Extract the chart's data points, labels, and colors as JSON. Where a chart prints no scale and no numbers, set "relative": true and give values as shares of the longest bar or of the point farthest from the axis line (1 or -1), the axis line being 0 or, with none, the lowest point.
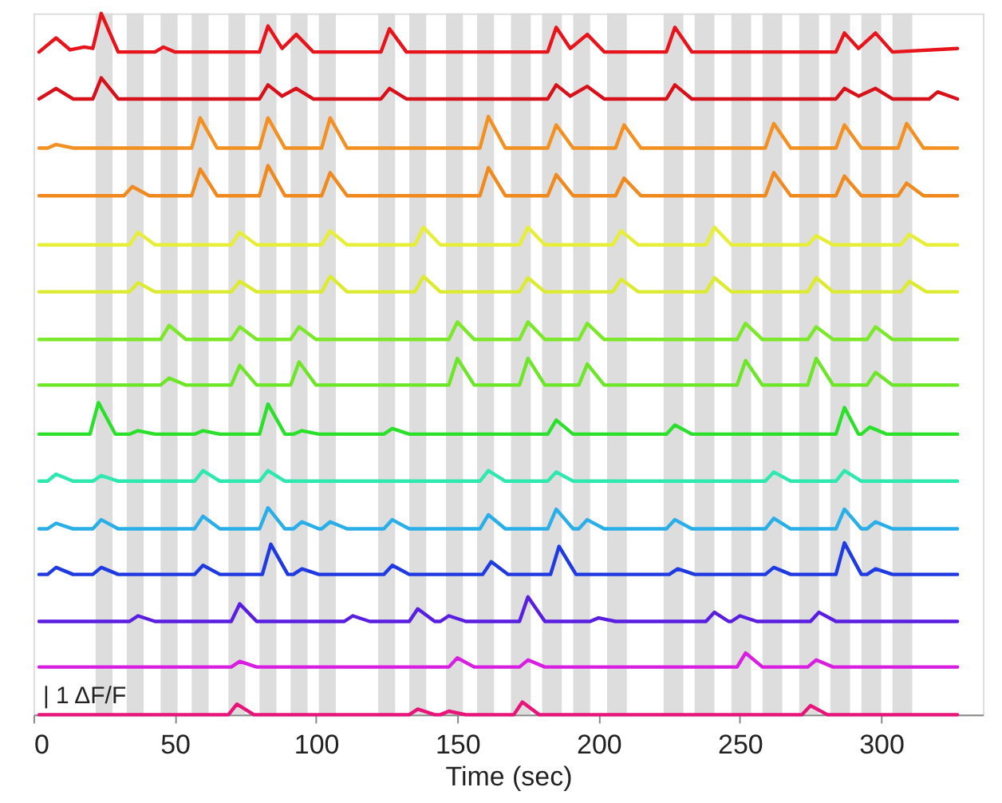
{
  "chart_data": {
    "type": "line",
    "relative": true,
    "xlabel": "Time (sec)",
    "xlim": [
      0,
      336
    ],
    "xticks": [
      0,
      50,
      100,
      150,
      200,
      250,
      300
    ],
    "grid": false,
    "legend": false,
    "annotations": [
      "| 1 ΔF/F"
    ],
    "bands": [
      {
        "axis": "x",
        "from": 22,
        "to": 28,
        "color": "#d9d9d9"
      },
      {
        "axis": "x",
        "from": 33,
        "to": 39,
        "color": "#d9d9d9"
      },
      {
        "axis": "x",
        "from": 45,
        "to": 51,
        "color": "#d9d9d9"
      },
      {
        "axis": "x",
        "from": 56,
        "to": 62,
        "color": "#d9d9d9"
      },
      {
        "axis": "x",
        "from": 69,
        "to": 75,
        "color": "#d9d9d9"
      },
      {
        "axis": "x",
        "from": 80,
        "to": 86,
        "color": "#d9d9d9"
      },
      {
        "axis": "x",
        "from": 91,
        "to": 97,
        "color": "#d9d9d9"
      },
      {
        "axis": "x",
        "from": 101,
        "to": 107,
        "color": "#d9d9d9"
      },
      {
        "axis": "x",
        "from": 122,
        "to": 128,
        "color": "#d9d9d9"
      },
      {
        "axis": "x",
        "from": 133,
        "to": 139,
        "color": "#d9d9d9"
      },
      {
        "axis": "x",
        "from": 146,
        "to": 152,
        "color": "#d9d9d9"
      },
      {
        "axis": "x",
        "from": 157,
        "to": 163,
        "color": "#d9d9d9"
      },
      {
        "axis": "x",
        "from": 169,
        "to": 176,
        "color": "#d9d9d9"
      },
      {
        "axis": "x",
        "from": 180,
        "to": 187,
        "color": "#d9d9d9"
      },
      {
        "axis": "x",
        "from": 191,
        "to": 197,
        "color": "#d9d9d9"
      },
      {
        "axis": "x",
        "from": 203,
        "to": 210,
        "color": "#d9d9d9"
      },
      {
        "axis": "x",
        "from": 223,
        "to": 230,
        "color": "#d9d9d9"
      },
      {
        "axis": "x",
        "from": 234,
        "to": 241,
        "color": "#d9d9d9"
      },
      {
        "axis": "x",
        "from": 247,
        "to": 254,
        "color": "#d9d9d9"
      },
      {
        "axis": "x",
        "from": 258,
        "to": 265,
        "color": "#d9d9d9"
      },
      {
        "axis": "x",
        "from": 271,
        "to": 278,
        "color": "#d9d9d9"
      },
      {
        "axis": "x",
        "from": 282,
        "to": 289,
        "color": "#d9d9d9"
      },
      {
        "axis": "x",
        "from": 293,
        "to": 300,
        "color": "#d9d9d9"
      },
      {
        "axis": "x",
        "from": 304,
        "to": 311,
        "color": "#d9d9d9"
      }
    ],
    "series": [
      {
        "color": "#e8141c",
        "x": [
          2,
          8,
          13,
          18,
          21,
          24,
          30,
          43,
          46,
          50,
          80,
          83,
          88,
          93,
          99,
          123,
          126,
          132,
          182,
          185,
          190,
          196,
          202,
          224,
          227,
          233,
          284,
          287,
          292,
          298,
          304,
          327
        ],
        "values": [
          0.945,
          0.965,
          0.948,
          0.952,
          0.95,
          1,
          0.945,
          0.945,
          0.952,
          0.945,
          0.945,
          0.982,
          0.95,
          0.97,
          0.945,
          0.945,
          0.978,
          0.945,
          0.945,
          0.98,
          0.95,
          0.97,
          0.945,
          0.945,
          0.98,
          0.945,
          0.945,
          0.972,
          0.95,
          0.972,
          0.945,
          0.95
        ]
      },
      {
        "color": "#d8101a",
        "x": [
          2,
          8,
          14,
          21,
          24,
          30,
          80,
          83,
          88,
          93,
          99,
          123,
          126,
          132,
          182,
          185,
          190,
          196,
          202,
          224,
          227,
          233,
          284,
          287,
          292,
          298,
          304,
          317,
          320,
          327
        ],
        "values": [
          0.878,
          0.893,
          0.878,
          0.878,
          0.908,
          0.878,
          0.878,
          0.898,
          0.882,
          0.893,
          0.878,
          0.878,
          0.893,
          0.878,
          0.878,
          0.898,
          0.882,
          0.896,
          0.878,
          0.878,
          0.898,
          0.878,
          0.878,
          0.893,
          0.882,
          0.893,
          0.878,
          0.878,
          0.888,
          0.878
        ]
      },
      {
        "color": "#f39022",
        "x": [
          2,
          5,
          8,
          14,
          56,
          59,
          65,
          80,
          83,
          89,
          102,
          105,
          111,
          158,
          161,
          167,
          182,
          185,
          191,
          206,
          209,
          215,
          259,
          262,
          268,
          284,
          287,
          293,
          306,
          309,
          315,
          327
        ],
        "values": [
          0.808,
          0.808,
          0.813,
          0.808,
          0.808,
          0.851,
          0.808,
          0.808,
          0.851,
          0.808,
          0.808,
          0.851,
          0.808,
          0.808,
          0.853,
          0.808,
          0.808,
          0.841,
          0.808,
          0.808,
          0.841,
          0.808,
          0.808,
          0.843,
          0.808,
          0.808,
          0.841,
          0.808,
          0.808,
          0.843,
          0.808,
          0.808
        ]
      },
      {
        "color": "#f08a1e",
        "x": [
          2,
          32,
          35,
          41,
          56,
          59,
          65,
          80,
          83,
          89,
          102,
          105,
          111,
          158,
          161,
          167,
          182,
          185,
          191,
          206,
          209,
          215,
          259,
          262,
          268,
          284,
          287,
          293,
          306,
          309,
          315,
          327
        ],
        "values": [
          0.74,
          0.74,
          0.753,
          0.74,
          0.74,
          0.778,
          0.74,
          0.74,
          0.783,
          0.74,
          0.74,
          0.773,
          0.74,
          0.74,
          0.78,
          0.74,
          0.74,
          0.77,
          0.74,
          0.74,
          0.765,
          0.74,
          0.74,
          0.773,
          0.74,
          0.74,
          0.768,
          0.74,
          0.74,
          0.758,
          0.74,
          0.74
        ]
      },
      {
        "color": "#e6ee38",
        "x": [
          2,
          34,
          37,
          43,
          70,
          73,
          79,
          102,
          105,
          111,
          135,
          138,
          144,
          172,
          175,
          181,
          205,
          208,
          214,
          238,
          241,
          247,
          274,
          277,
          283,
          307,
          310,
          316,
          327
        ],
        "values": [
          0.67,
          0.67,
          0.688,
          0.67,
          0.67,
          0.688,
          0.67,
          0.67,
          0.69,
          0.67,
          0.67,
          0.695,
          0.67,
          0.67,
          0.695,
          0.67,
          0.67,
          0.69,
          0.67,
          0.67,
          0.695,
          0.67,
          0.67,
          0.683,
          0.67,
          0.67,
          0.685,
          0.67,
          0.67
        ]
      },
      {
        "color": "#dcea30",
        "x": [
          2,
          34,
          37,
          43,
          70,
          73,
          79,
          102,
          105,
          111,
          135,
          138,
          144,
          172,
          175,
          181,
          205,
          208,
          214,
          238,
          241,
          247,
          274,
          277,
          283,
          307,
          310,
          316,
          327
        ],
        "values": [
          0.603,
          0.603,
          0.616,
          0.603,
          0.603,
          0.618,
          0.603,
          0.603,
          0.625,
          0.603,
          0.603,
          0.625,
          0.603,
          0.603,
          0.623,
          0.603,
          0.603,
          0.621,
          0.603,
          0.603,
          0.623,
          0.603,
          0.603,
          0.623,
          0.603,
          0.603,
          0.618,
          0.603,
          0.603
        ]
      },
      {
        "color": "#7be82a",
        "x": [
          2,
          45,
          48,
          54,
          70,
          73,
          79,
          91,
          94,
          100,
          147,
          150,
          156,
          172,
          175,
          181,
          193,
          196,
          202,
          249,
          252,
          258,
          274,
          277,
          283,
          295,
          298,
          304,
          327
        ],
        "values": [
          0.535,
          0.535,
          0.555,
          0.535,
          0.535,
          0.553,
          0.535,
          0.535,
          0.553,
          0.535,
          0.535,
          0.56,
          0.535,
          0.535,
          0.56,
          0.535,
          0.535,
          0.558,
          0.535,
          0.535,
          0.558,
          0.535,
          0.535,
          0.553,
          0.535,
          0.535,
          0.553,
          0.535,
          0.535
        ]
      },
      {
        "color": "#6ee628",
        "x": [
          2,
          45,
          48,
          54,
          70,
          73,
          79,
          91,
          94,
          100,
          147,
          150,
          156,
          172,
          175,
          181,
          193,
          196,
          202,
          249,
          252,
          258,
          274,
          277,
          283,
          295,
          298,
          304,
          327
        ],
        "values": [
          0.47,
          0.47,
          0.48,
          0.47,
          0.47,
          0.498,
          0.47,
          0.47,
          0.503,
          0.47,
          0.47,
          0.508,
          0.47,
          0.47,
          0.508,
          0.47,
          0.47,
          0.5,
          0.47,
          0.47,
          0.505,
          0.47,
          0.47,
          0.508,
          0.47,
          0.47,
          0.488,
          0.47,
          0.47
        ]
      },
      {
        "color": "#2be02a",
        "x": [
          2,
          20,
          23,
          29,
          34,
          37,
          43,
          57,
          60,
          66,
          80,
          83,
          89,
          92,
          95,
          101,
          124,
          127,
          133,
          182,
          185,
          191,
          224,
          227,
          233,
          284,
          287,
          292,
          293,
          296,
          302,
          327
        ],
        "values": [
          0.4,
          0.4,
          0.445,
          0.4,
          0.4,
          0.405,
          0.4,
          0.4,
          0.405,
          0.4,
          0.4,
          0.443,
          0.4,
          0.4,
          0.405,
          0.4,
          0.4,
          0.408,
          0.4,
          0.4,
          0.42,
          0.4,
          0.4,
          0.413,
          0.4,
          0.4,
          0.438,
          0.4,
          0.4,
          0.41,
          0.4,
          0.4
        ]
      },
      {
        "color": "#2ee8b0",
        "x": [
          2,
          5,
          8,
          14,
          21,
          24,
          30,
          57,
          60,
          66,
          80,
          83,
          89,
          158,
          161,
          167,
          182,
          185,
          191,
          259,
          262,
          268,
          284,
          287,
          293,
          327
        ],
        "values": [
          0.333,
          0.333,
          0.343,
          0.333,
          0.333,
          0.341,
          0.333,
          0.333,
          0.348,
          0.333,
          0.333,
          0.348,
          0.333,
          0.333,
          0.348,
          0.333,
          0.333,
          0.346,
          0.333,
          0.333,
          0.346,
          0.333,
          0.333,
          0.348,
          0.333,
          0.333
        ]
      },
      {
        "color": "#2aaee8",
        "x": [
          2,
          5,
          8,
          14,
          21,
          24,
          30,
          57,
          60,
          66,
          80,
          83,
          89,
          92,
          95,
          101,
          102,
          105,
          111,
          124,
          127,
          133,
          158,
          161,
          167,
          182,
          185,
          191,
          193,
          196,
          202,
          224,
          227,
          233,
          259,
          262,
          268,
          284,
          287,
          293,
          295,
          298,
          304,
          327
        ],
        "values": [
          0.265,
          0.265,
          0.273,
          0.265,
          0.265,
          0.278,
          0.265,
          0.265,
          0.283,
          0.265,
          0.265,
          0.295,
          0.265,
          0.265,
          0.275,
          0.265,
          0.265,
          0.275,
          0.265,
          0.265,
          0.278,
          0.265,
          0.265,
          0.285,
          0.265,
          0.265,
          0.293,
          0.265,
          0.265,
          0.278,
          0.265,
          0.265,
          0.278,
          0.265,
          0.265,
          0.28,
          0.265,
          0.265,
          0.293,
          0.265,
          0.265,
          0.275,
          0.265,
          0.265
        ]
      },
      {
        "color": "#1e3ae0",
        "x": [
          2,
          5,
          8,
          14,
          21,
          24,
          30,
          57,
          60,
          66,
          81,
          84,
          90,
          92,
          95,
          101,
          124,
          127,
          133,
          159,
          162,
          168,
          183,
          186,
          192,
          225,
          228,
          234,
          259,
          262,
          268,
          284,
          287,
          293,
          295,
          298,
          304,
          327
        ],
        "values": [
          0.2,
          0.2,
          0.21,
          0.2,
          0.2,
          0.21,
          0.2,
          0.2,
          0.213,
          0.2,
          0.2,
          0.243,
          0.2,
          0.2,
          0.208,
          0.2,
          0.2,
          0.213,
          0.2,
          0.2,
          0.218,
          0.2,
          0.2,
          0.24,
          0.2,
          0.2,
          0.208,
          0.2,
          0.2,
          0.21,
          0.2,
          0.2,
          0.245,
          0.2,
          0.2,
          0.208,
          0.2,
          0.2
        ]
      },
      {
        "color": "#5a1ee0",
        "x": [
          2,
          34,
          37,
          43,
          70,
          73,
          79,
          110,
          113,
          119,
          133,
          136,
          142,
          144,
          147,
          153,
          172,
          175,
          181,
          197,
          200,
          206,
          238,
          241,
          246,
          247,
          250,
          256,
          275,
          278,
          284,
          327
        ],
        "values": [
          0.133,
          0.133,
          0.141,
          0.133,
          0.133,
          0.158,
          0.133,
          0.133,
          0.141,
          0.133,
          0.133,
          0.151,
          0.133,
          0.133,
          0.141,
          0.133,
          0.133,
          0.168,
          0.133,
          0.133,
          0.138,
          0.133,
          0.133,
          0.146,
          0.133,
          0.133,
          0.141,
          0.133,
          0.133,
          0.146,
          0.133,
          0.133
        ]
      },
      {
        "color": "#d81ee0",
        "x": [
          2,
          70,
          73,
          79,
          147,
          150,
          156,
          172,
          175,
          181,
          249,
          252,
          258,
          274,
          277,
          283,
          327
        ],
        "values": [
          0.068,
          0.068,
          0.076,
          0.068,
          0.068,
          0.081,
          0.068,
          0.068,
          0.078,
          0.068,
          0.068,
          0.088,
          0.068,
          0.068,
          0.078,
          0.068,
          0.068
        ]
      },
      {
        "color": "#e8147a",
        "x": [
          2,
          69,
          72,
          78,
          133,
          136,
          142,
          144,
          147,
          153,
          170,
          173,
          179,
          272,
          275,
          281,
          327
        ],
        "values": [
          0,
          0,
          0.015,
          0,
          0,
          0.008,
          0,
          0,
          0.005,
          0,
          0,
          0.018,
          0,
          0,
          0.013,
          0,
          0
        ]
      }
    ]
  }
}
